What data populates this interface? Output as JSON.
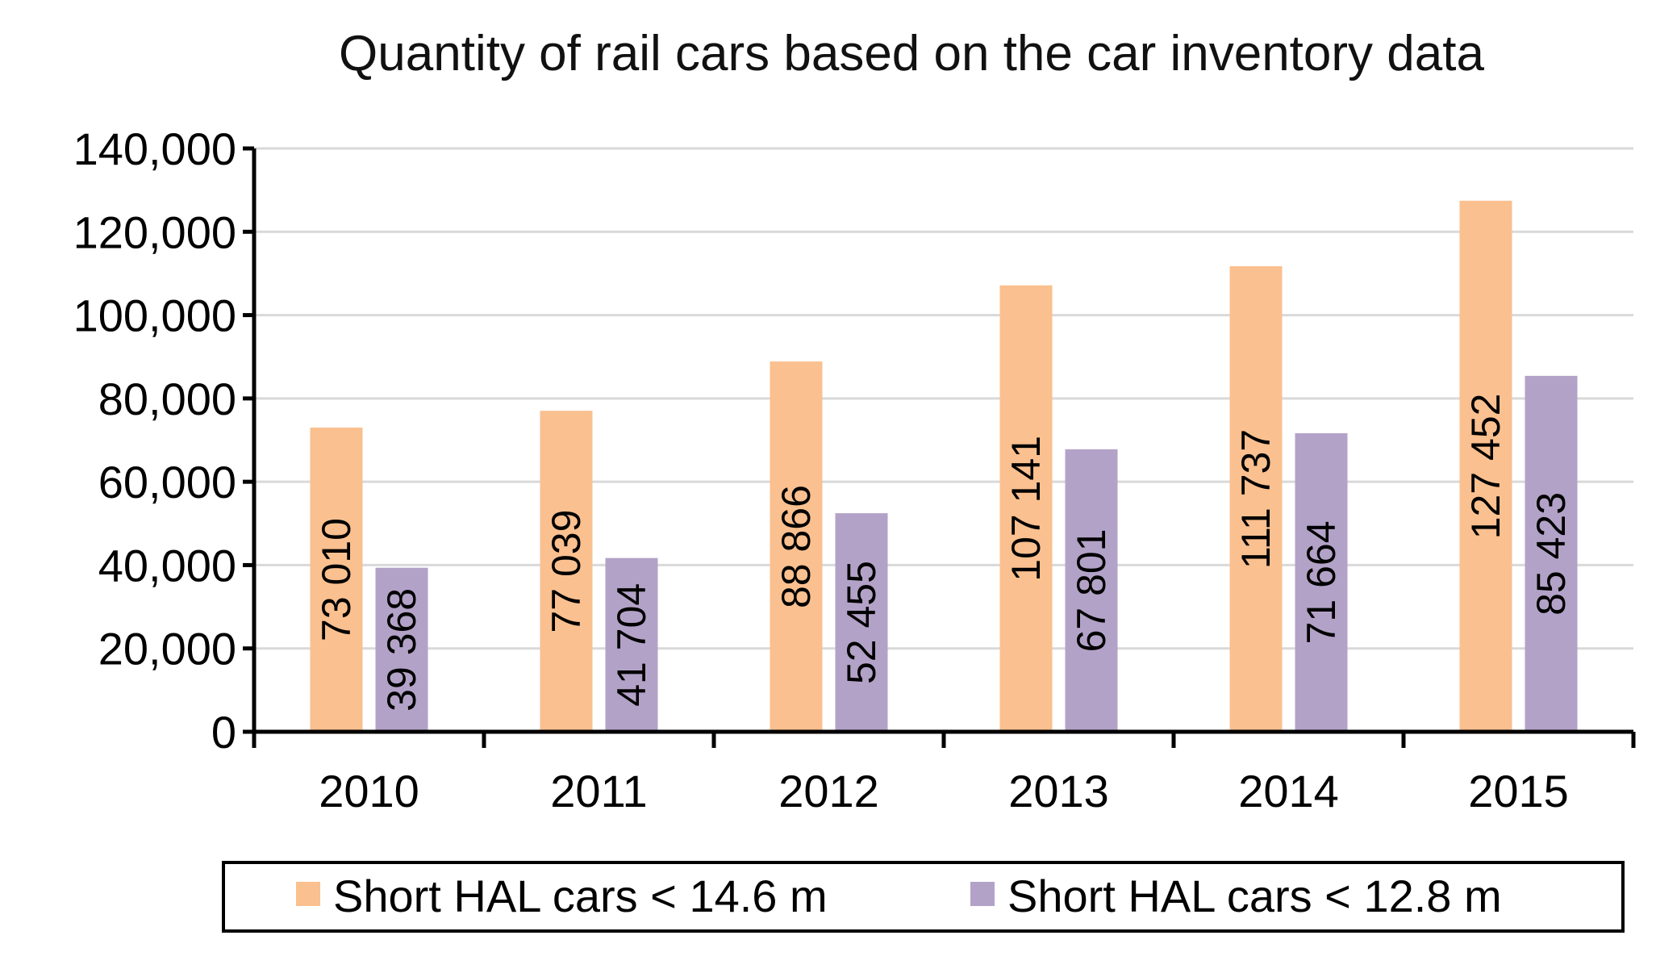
{
  "chart_data": {
    "type": "bar",
    "title": "Quantity of rail cars based on the car inventory data",
    "categories": [
      "2010",
      "2011",
      "2012",
      "2013",
      "2014",
      "2015"
    ],
    "series": [
      {
        "name": "Short HAL cars < 14.6 m",
        "color": "#fac08f",
        "values": [
          73010,
          77039,
          88866,
          107141,
          111737,
          127452
        ],
        "labels": [
          "73 010",
          "77 039",
          "88 866",
          "107 141",
          "111 737",
          "127 452"
        ]
      },
      {
        "name": "Short HAL cars < 12.8 m",
        "color": "#b3a2c7",
        "values": [
          39368,
          41704,
          52455,
          67801,
          71664,
          85423
        ],
        "labels": [
          "39 368",
          "41 704",
          "52 455",
          "67 801",
          "71 664",
          "85 423"
        ]
      }
    ],
    "ylim": [
      0,
      140000
    ],
    "yticks": [
      0,
      20000,
      40000,
      60000,
      80000,
      100000,
      120000,
      140000
    ],
    "ytick_labels": [
      "0",
      "20,000",
      "40,000",
      "60,000",
      "80,000",
      "100,000",
      "120,000",
      "140,000"
    ],
    "xlabel": "",
    "ylabel": "",
    "grid": true,
    "legend_position": "bottom"
  }
}
